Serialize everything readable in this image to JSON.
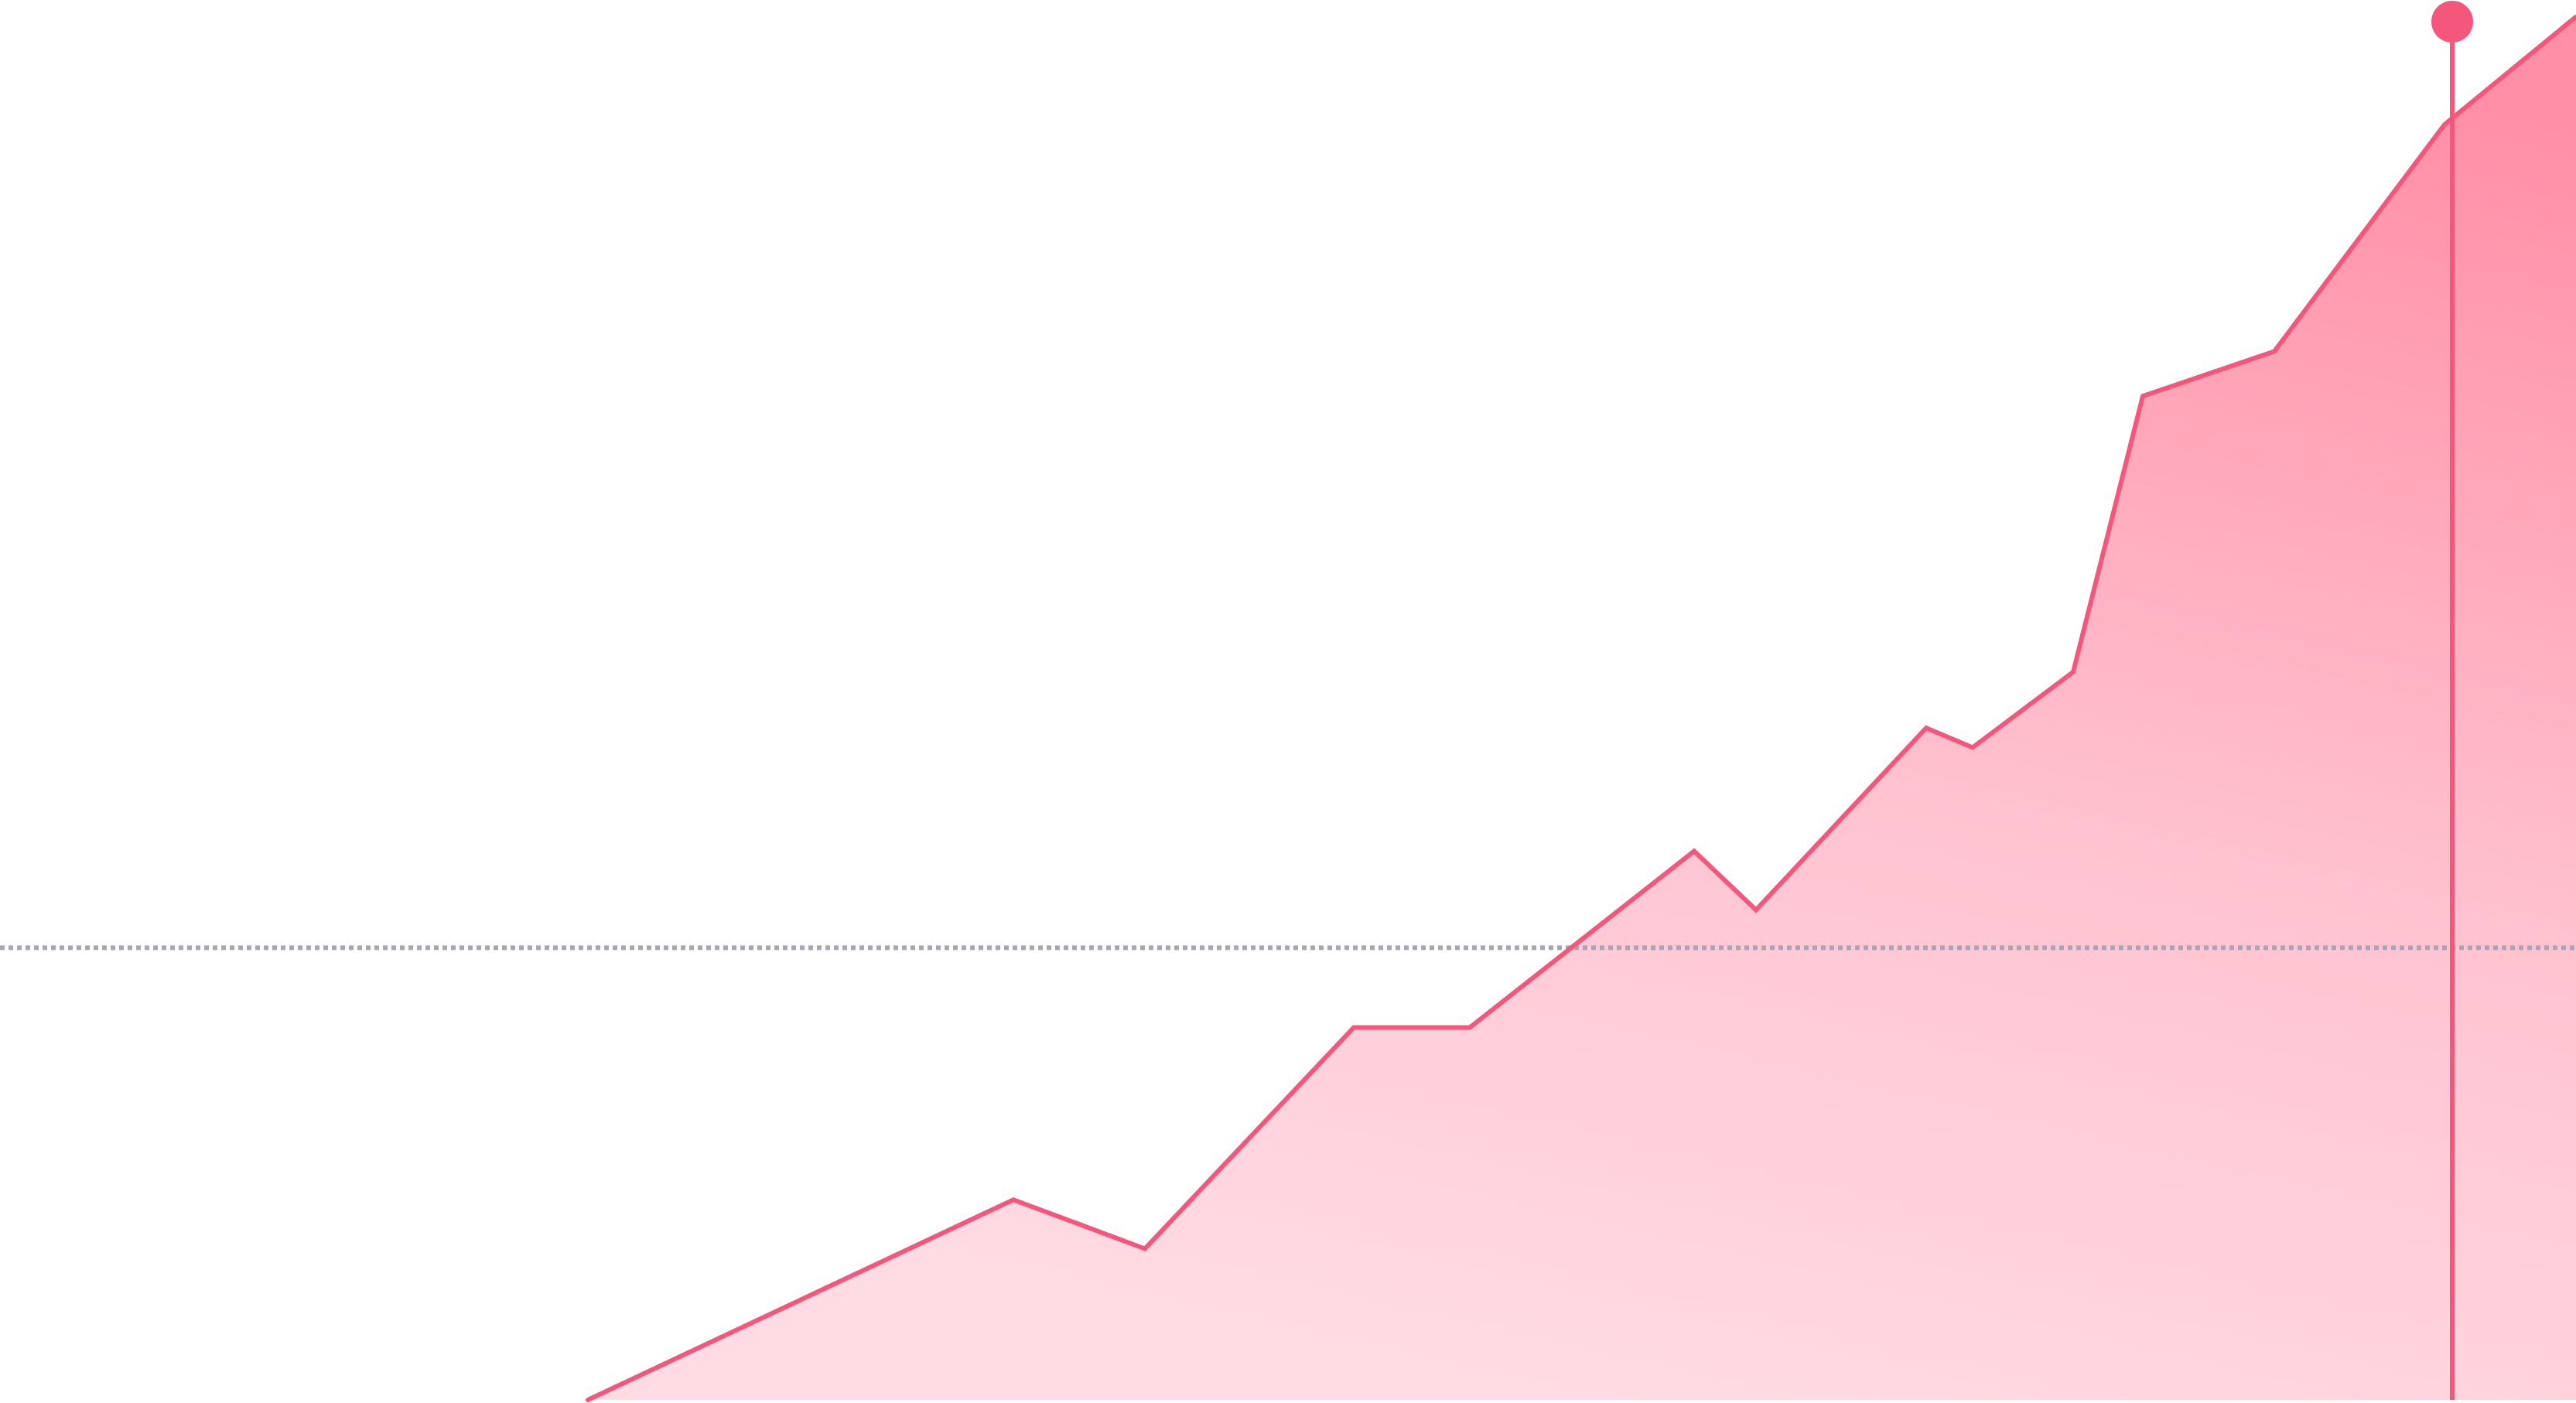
{
  "colors": {
    "line": "#f5577c",
    "fill_top": "#ff8ea6",
    "fill_bottom": "#ffdce4",
    "reference_line": "#a9a4b8",
    "faint_reference_line": "#e5e3ea",
    "marker": "#f5577c",
    "background": "#ffffff"
  },
  "chart_data": {
    "type": "area",
    "title": "",
    "xlabel": "",
    "ylabel": "",
    "grid": false,
    "legend": "none",
    "xlim": [
      0,
      33.3
    ],
    "ylim": [
      0,
      100
    ],
    "series": [
      {
        "x": [
          7.6,
          13.1,
          14.8,
          17.5,
          19.0,
          21.9,
          22.7,
          24.9,
          25.5,
          26.8,
          27.7,
          29.4,
          31.6,
          33.3
        ],
        "y": [
          0,
          14.3,
          10.8,
          26.6,
          26.6,
          39.2,
          35.0,
          48.0,
          46.6,
          52.0,
          71.7,
          74.9,
          91.1,
          98.8
        ]
      }
    ],
    "reference_lines": [
      {
        "y": 32.3,
        "style": "dotted",
        "emphasis": "strong"
      },
      {
        "y": 66.2,
        "style": "dotted",
        "emphasis": "faint"
      }
    ],
    "cursor": {
      "x": 31.7
    }
  }
}
